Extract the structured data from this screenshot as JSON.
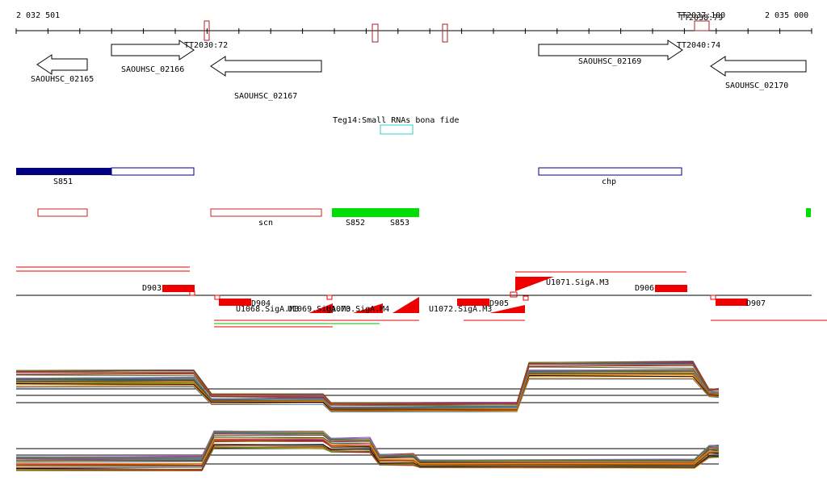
{
  "ruler": {
    "start_label": "2 032 501",
    "end_label": "2 035 000"
  },
  "genes": [
    {
      "label": "SAOUHSC_02165",
      "strand": "-"
    },
    {
      "label": "SAOUHSC_02166",
      "strand": "+"
    },
    {
      "label": "SAOUHSC_02167",
      "strand": "-"
    },
    {
      "label": "SAOUHSC_02169",
      "strand": "+"
    },
    {
      "label": "SAOUHSC_02170",
      "strand": "-"
    }
  ],
  "terminators": [
    {
      "label": "TT2030:72"
    },
    {
      "label": "TT2037:100"
    },
    {
      "label": "TT2038:79"
    },
    {
      "label": "TT2040:74"
    }
  ],
  "small_rna": {
    "label": "Teg14:Small RNAs bona fide"
  },
  "features": [
    {
      "label": "S851"
    },
    {
      "label": "chp"
    },
    {
      "label": "scn"
    },
    {
      "label": "S852"
    },
    {
      "label": "S853"
    }
  ],
  "downstream": [
    {
      "label": "D903"
    },
    {
      "label": "D904"
    },
    {
      "label": "D905"
    },
    {
      "label": "D906"
    },
    {
      "label": "D907"
    }
  ],
  "upstream": [
    {
      "label": "U1068.SigA.M3"
    },
    {
      "label": "U1069.SigA.M3"
    },
    {
      "label": "U1070.SigA.M4"
    },
    {
      "label": "U1071.SigA.M3"
    },
    {
      "label": "U1072.SigA.M3"
    }
  ],
  "colors": {
    "gene_arrow": "#000000",
    "terminator": "#aa2222",
    "small_rna": "#33cccc",
    "segment_dark": "#000080",
    "segment_outline": "#000080",
    "green_feature": "#00dd00",
    "red_feature": "#ee0000",
    "red_outline": "#cc2222"
  }
}
